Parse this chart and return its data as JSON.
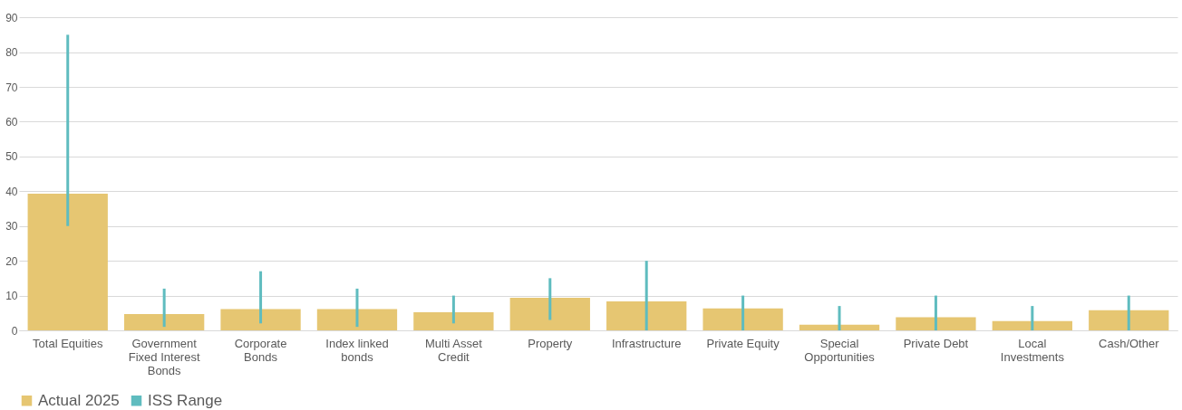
{
  "chart_data": {
    "type": "bar",
    "categories": [
      "Total Equities",
      "Government Fixed Interest Bonds",
      "Corporate Bonds",
      "Index linked bonds",
      "Multi Asset Credit",
      "Property",
      "Infrastructure",
      "Private Equity",
      "Special Opportunities",
      "Private Debt",
      "Local Investments",
      "Cash/Other"
    ],
    "series": [
      {
        "name": "Actual 2025",
        "color": "#e6c672",
        "values": [
          39.3,
          4.7,
          6.1,
          6.1,
          5.2,
          9.4,
          8.3,
          6.3,
          1.6,
          3.8,
          2.7,
          5.8
        ]
      },
      {
        "name": "ISS Range",
        "color": "#5fbcbf",
        "type": "bar",
        "base": [
          30,
          1,
          2,
          1,
          2,
          3,
          0,
          0,
          0,
          0,
          0,
          0
        ],
        "values": [
          55,
          11,
          15,
          11,
          8,
          12,
          20,
          10,
          7,
          10,
          7,
          10
        ]
      }
    ],
    "ylim": [
      0,
      95
    ],
    "yticks": [
      0,
      10,
      20,
      30,
      40,
      50,
      60,
      70,
      80,
      90
    ],
    "grid": "y",
    "legend": "bottom"
  }
}
